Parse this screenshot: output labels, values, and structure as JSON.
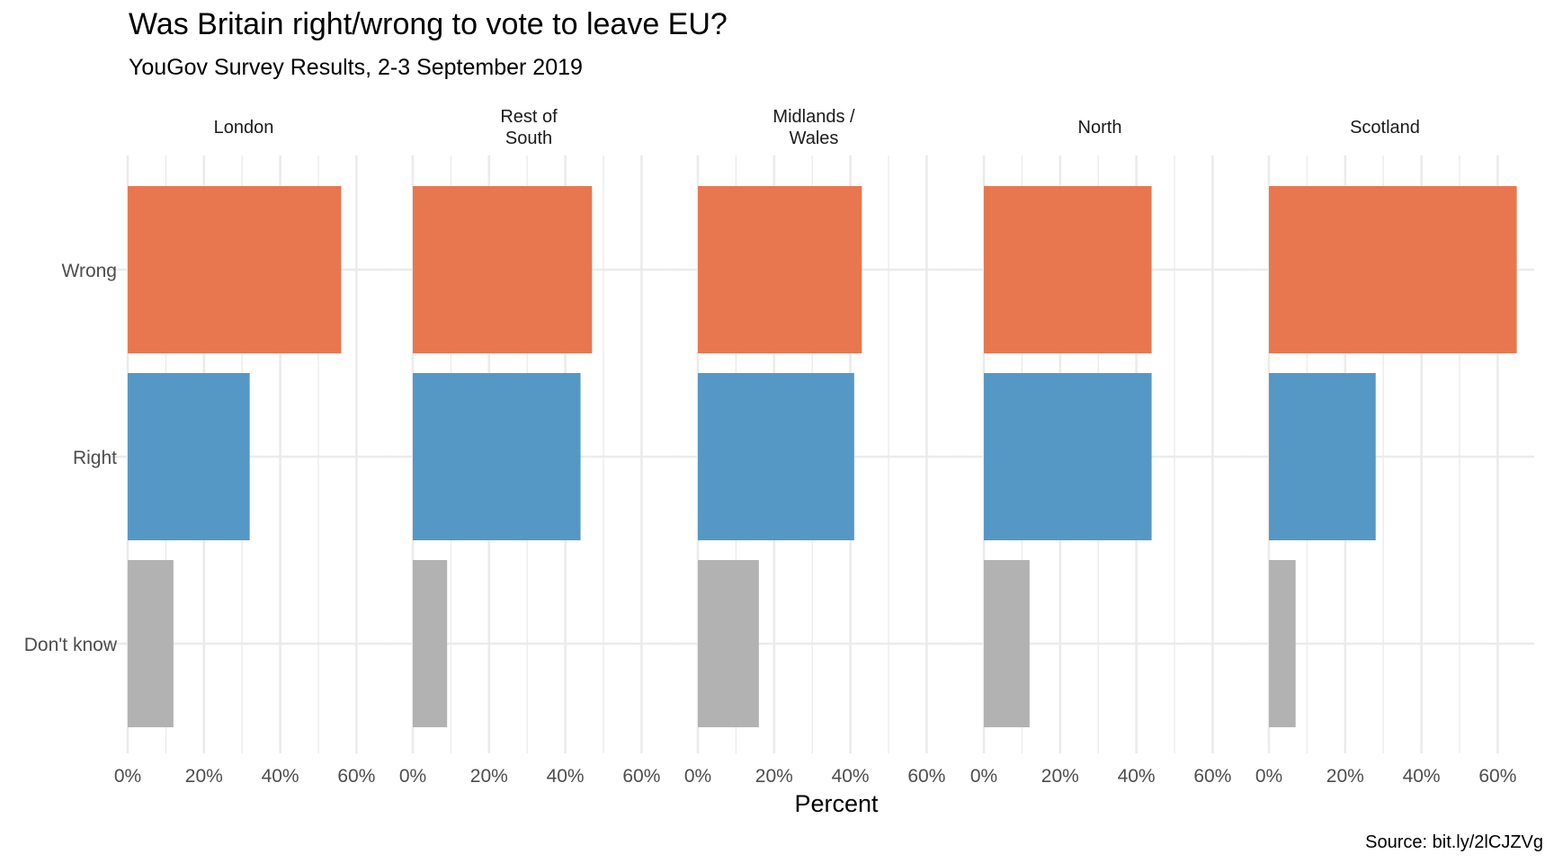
{
  "chart_data": {
    "type": "bar",
    "orientation": "horizontal",
    "faceted": true,
    "title": "Was Britain right/wrong to vote to leave EU?",
    "subtitle": "YouGov Survey Results, 2-3 September 2019",
    "xlabel": "Percent",
    "ylabel": "",
    "caption": "Source: bit.ly/2lCJZVg",
    "categories": [
      "Wrong",
      "Right",
      "Don't know"
    ],
    "category_colors": [
      "#e8774f",
      "#5598c5",
      "#b2b2b2"
    ],
    "xlim": [
      0,
      65
    ],
    "x_ticks": [
      0,
      20,
      40,
      60
    ],
    "x_tick_labels": [
      "0%",
      "20%",
      "40%",
      "60%"
    ],
    "grid": true,
    "legend": "none",
    "facets": [
      {
        "name": "London",
        "values": [
          56,
          32,
          12
        ]
      },
      {
        "name": "Rest of\nSouth",
        "values": [
          47,
          44,
          9
        ]
      },
      {
        "name": "Midlands /\nWales",
        "values": [
          43,
          41,
          16
        ]
      },
      {
        "name": "North",
        "values": [
          44,
          44,
          12
        ]
      },
      {
        "name": "Scotland",
        "values": [
          65,
          28,
          7
        ]
      }
    ]
  }
}
